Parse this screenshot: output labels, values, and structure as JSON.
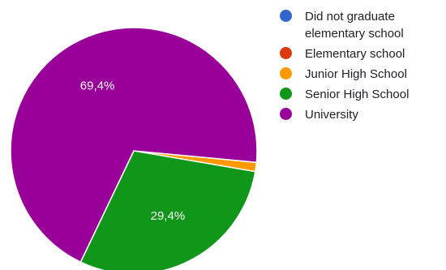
{
  "chart_data": {
    "type": "pie",
    "categories": [
      "Did not graduate elementary school",
      "Elementary school",
      "Junior High School",
      "Senior High School",
      "University"
    ],
    "legend_lines": [
      [
        "Did not graduate",
        "elementary school"
      ],
      [
        "Elementary school"
      ],
      [
        "Junior High School"
      ],
      [
        "Senior High School"
      ],
      [
        "University"
      ]
    ],
    "values": [
      0,
      0,
      1.2,
      29.4,
      69.4
    ],
    "colors": [
      "#3366cc",
      "#dc3912",
      "#ff9900",
      "#109618",
      "#990099"
    ],
    "data_labels": [
      "",
      "",
      "",
      "29,4%",
      "69,4%"
    ],
    "legend_position": "right"
  }
}
